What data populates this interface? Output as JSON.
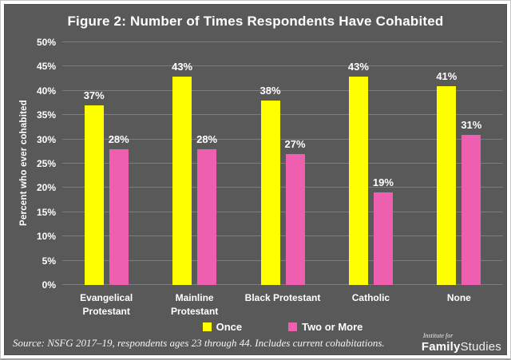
{
  "chart_data": {
    "type": "bar",
    "title": "Figure 2: Number of Times Respondents Have Cohabited",
    "categories": [
      "Evangelical Protestant",
      "Mainline Protestant",
      "Black Protestant",
      "Catholic",
      "None"
    ],
    "series": [
      {
        "name": "Once",
        "color": "#FFFF00",
        "values": [
          37,
          43,
          38,
          43,
          41
        ]
      },
      {
        "name": "Two or More",
        "color": "#EE5FB0",
        "values": [
          28,
          28,
          27,
          19,
          31
        ]
      }
    ],
    "value_suffix": "%",
    "xlabel": "",
    "ylabel": "Percent who ever cohabited",
    "ylim": [
      0,
      50
    ],
    "ytick_labels": [
      "0%",
      "5%",
      "10%",
      "15%",
      "20%",
      "25%",
      "30%",
      "35%",
      "40%",
      "45%",
      "50%"
    ],
    "grid": true,
    "legend_position": "bottom",
    "background_color": "#595959",
    "gridline_color": "#7c7c7c",
    "text_color": "#ffffff"
  },
  "footer": {
    "source": "Source: NSFG 2017–19, respondents ages 23 through 44. Includes current cohabitations.",
    "logo": {
      "top": "Institute for",
      "bold": "Family",
      "light": "Studies"
    }
  }
}
